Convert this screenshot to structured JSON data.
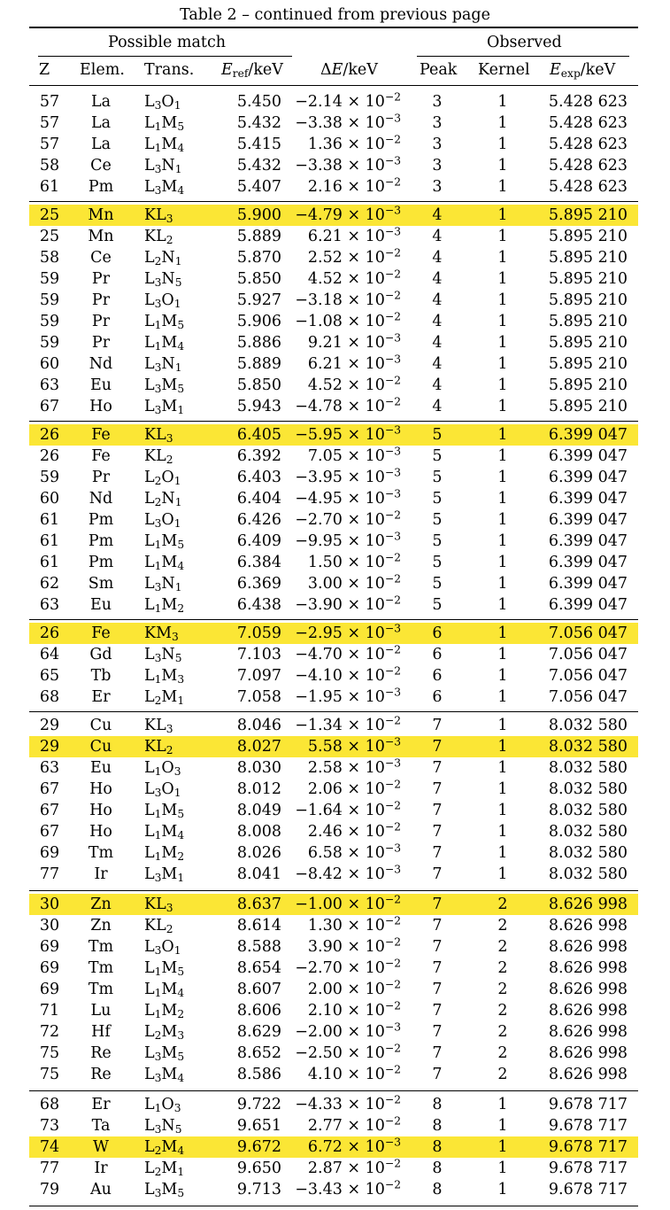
{
  "caption": "Table 2 – continued from previous page",
  "header": {
    "group_possible": "Possible match",
    "group_observed": "Observed",
    "col_z": "Z",
    "col_elem": "Elem.",
    "col_trans": "Trans.",
    "col_eref_main": "E",
    "col_eref_sub": "ref",
    "col_eref_unit": "/keV",
    "col_de_delta": "Δ",
    "col_de_main": "E",
    "col_de_unit": "/keV",
    "col_peak": "Peak",
    "col_kernel": "Kernel",
    "col_eexp_main": "E",
    "col_eexp_sub": "exp",
    "col_eexp_unit": "/keV"
  },
  "highlight_color": "#fbe635",
  "groups": [
    {
      "rows": [
        {
          "z": "57",
          "el": "La",
          "t": [
            "L",
            "3",
            "O",
            "1"
          ],
          "eref": "5.450",
          "dm": "−2.14 × 10",
          "de": "−2",
          "peak": "3",
          "kernel": "1",
          "eexp": "5.428 623",
          "hl": false
        },
        {
          "z": "57",
          "el": "La",
          "t": [
            "L",
            "1",
            "M",
            "5"
          ],
          "eref": "5.432",
          "dm": "−3.38 × 10",
          "de": "−3",
          "peak": "3",
          "kernel": "1",
          "eexp": "5.428 623",
          "hl": false
        },
        {
          "z": "57",
          "el": "La",
          "t": [
            "L",
            "1",
            "M",
            "4"
          ],
          "eref": "5.415",
          "dm": "1.36 × 10",
          "de": "−2",
          "peak": "3",
          "kernel": "1",
          "eexp": "5.428 623",
          "hl": false
        },
        {
          "z": "58",
          "el": "Ce",
          "t": [
            "L",
            "3",
            "N",
            "1"
          ],
          "eref": "5.432",
          "dm": "−3.38 × 10",
          "de": "−3",
          "peak": "3",
          "kernel": "1",
          "eexp": "5.428 623",
          "hl": false
        },
        {
          "z": "61",
          "el": "Pm",
          "t": [
            "L",
            "3",
            "M",
            "4"
          ],
          "eref": "5.407",
          "dm": "2.16 × 10",
          "de": "−2",
          "peak": "3",
          "kernel": "1",
          "eexp": "5.428 623",
          "hl": false
        }
      ]
    },
    {
      "rows": [
        {
          "z": "25",
          "el": "Mn",
          "t": [
            "K",
            "",
            "L",
            "3"
          ],
          "eref": "5.900",
          "dm": "−4.79 × 10",
          "de": "−3",
          "peak": "4",
          "kernel": "1",
          "eexp": "5.895 210",
          "hl": true
        },
        {
          "z": "25",
          "el": "Mn",
          "t": [
            "K",
            "",
            "L",
            "2"
          ],
          "eref": "5.889",
          "dm": "6.21 × 10",
          "de": "−3",
          "peak": "4",
          "kernel": "1",
          "eexp": "5.895 210",
          "hl": false
        },
        {
          "z": "58",
          "el": "Ce",
          "t": [
            "L",
            "2",
            "N",
            "1"
          ],
          "eref": "5.870",
          "dm": "2.52 × 10",
          "de": "−2",
          "peak": "4",
          "kernel": "1",
          "eexp": "5.895 210",
          "hl": false
        },
        {
          "z": "59",
          "el": "Pr",
          "t": [
            "L",
            "3",
            "N",
            "5"
          ],
          "eref": "5.850",
          "dm": "4.52 × 10",
          "de": "−2",
          "peak": "4",
          "kernel": "1",
          "eexp": "5.895 210",
          "hl": false
        },
        {
          "z": "59",
          "el": "Pr",
          "t": [
            "L",
            "3",
            "O",
            "1"
          ],
          "eref": "5.927",
          "dm": "−3.18 × 10",
          "de": "−2",
          "peak": "4",
          "kernel": "1",
          "eexp": "5.895 210",
          "hl": false
        },
        {
          "z": "59",
          "el": "Pr",
          "t": [
            "L",
            "1",
            "M",
            "5"
          ],
          "eref": "5.906",
          "dm": "−1.08 × 10",
          "de": "−2",
          "peak": "4",
          "kernel": "1",
          "eexp": "5.895 210",
          "hl": false
        },
        {
          "z": "59",
          "el": "Pr",
          "t": [
            "L",
            "1",
            "M",
            "4"
          ],
          "eref": "5.886",
          "dm": "9.21 × 10",
          "de": "−3",
          "peak": "4",
          "kernel": "1",
          "eexp": "5.895 210",
          "hl": false
        },
        {
          "z": "60",
          "el": "Nd",
          "t": [
            "L",
            "3",
            "N",
            "1"
          ],
          "eref": "5.889",
          "dm": "6.21 × 10",
          "de": "−3",
          "peak": "4",
          "kernel": "1",
          "eexp": "5.895 210",
          "hl": false
        },
        {
          "z": "63",
          "el": "Eu",
          "t": [
            "L",
            "3",
            "M",
            "5"
          ],
          "eref": "5.850",
          "dm": "4.52 × 10",
          "de": "−2",
          "peak": "4",
          "kernel": "1",
          "eexp": "5.895 210",
          "hl": false
        },
        {
          "z": "67",
          "el": "Ho",
          "t": [
            "L",
            "3",
            "M",
            "1"
          ],
          "eref": "5.943",
          "dm": "−4.78 × 10",
          "de": "−2",
          "peak": "4",
          "kernel": "1",
          "eexp": "5.895 210",
          "hl": false
        }
      ]
    },
    {
      "rows": [
        {
          "z": "26",
          "el": "Fe",
          "t": [
            "K",
            "",
            "L",
            "3"
          ],
          "eref": "6.405",
          "dm": "−5.95 × 10",
          "de": "−3",
          "peak": "5",
          "kernel": "1",
          "eexp": "6.399 047",
          "hl": true
        },
        {
          "z": "26",
          "el": "Fe",
          "t": [
            "K",
            "",
            "L",
            "2"
          ],
          "eref": "6.392",
          "dm": "7.05 × 10",
          "de": "−3",
          "peak": "5",
          "kernel": "1",
          "eexp": "6.399 047",
          "hl": false
        },
        {
          "z": "59",
          "el": "Pr",
          "t": [
            "L",
            "2",
            "O",
            "1"
          ],
          "eref": "6.403",
          "dm": "−3.95 × 10",
          "de": "−3",
          "peak": "5",
          "kernel": "1",
          "eexp": "6.399 047",
          "hl": false
        },
        {
          "z": "60",
          "el": "Nd",
          "t": [
            "L",
            "2",
            "N",
            "1"
          ],
          "eref": "6.404",
          "dm": "−4.95 × 10",
          "de": "−3",
          "peak": "5",
          "kernel": "1",
          "eexp": "6.399 047",
          "hl": false
        },
        {
          "z": "61",
          "el": "Pm",
          "t": [
            "L",
            "3",
            "O",
            "1"
          ],
          "eref": "6.426",
          "dm": "−2.70 × 10",
          "de": "−2",
          "peak": "5",
          "kernel": "1",
          "eexp": "6.399 047",
          "hl": false
        },
        {
          "z": "61",
          "el": "Pm",
          "t": [
            "L",
            "1",
            "M",
            "5"
          ],
          "eref": "6.409",
          "dm": "−9.95 × 10",
          "de": "−3",
          "peak": "5",
          "kernel": "1",
          "eexp": "6.399 047",
          "hl": false
        },
        {
          "z": "61",
          "el": "Pm",
          "t": [
            "L",
            "1",
            "M",
            "4"
          ],
          "eref": "6.384",
          "dm": "1.50 × 10",
          "de": "−2",
          "peak": "5",
          "kernel": "1",
          "eexp": "6.399 047",
          "hl": false
        },
        {
          "z": "62",
          "el": "Sm",
          "t": [
            "L",
            "3",
            "N",
            "1"
          ],
          "eref": "6.369",
          "dm": "3.00 × 10",
          "de": "−2",
          "peak": "5",
          "kernel": "1",
          "eexp": "6.399 047",
          "hl": false
        },
        {
          "z": "63",
          "el": "Eu",
          "t": [
            "L",
            "1",
            "M",
            "2"
          ],
          "eref": "6.438",
          "dm": "−3.90 × 10",
          "de": "−2",
          "peak": "5",
          "kernel": "1",
          "eexp": "6.399 047",
          "hl": false
        }
      ]
    },
    {
      "rows": [
        {
          "z": "26",
          "el": "Fe",
          "t": [
            "K",
            "",
            "M",
            "3"
          ],
          "eref": "7.059",
          "dm": "−2.95 × 10",
          "de": "−3",
          "peak": "6",
          "kernel": "1",
          "eexp": "7.056 047",
          "hl": true
        },
        {
          "z": "64",
          "el": "Gd",
          "t": [
            "L",
            "3",
            "N",
            "5"
          ],
          "eref": "7.103",
          "dm": "−4.70 × 10",
          "de": "−2",
          "peak": "6",
          "kernel": "1",
          "eexp": "7.056 047",
          "hl": false
        },
        {
          "z": "65",
          "el": "Tb",
          "t": [
            "L",
            "1",
            "M",
            "3"
          ],
          "eref": "7.097",
          "dm": "−4.10 × 10",
          "de": "−2",
          "peak": "6",
          "kernel": "1",
          "eexp": "7.056 047",
          "hl": false
        },
        {
          "z": "68",
          "el": "Er",
          "t": [
            "L",
            "2",
            "M",
            "1"
          ],
          "eref": "7.058",
          "dm": "−1.95 × 10",
          "de": "−3",
          "peak": "6",
          "kernel": "1",
          "eexp": "7.056 047",
          "hl": false
        }
      ]
    },
    {
      "rows": [
        {
          "z": "29",
          "el": "Cu",
          "t": [
            "K",
            "",
            "L",
            "3"
          ],
          "eref": "8.046",
          "dm": "−1.34 × 10",
          "de": "−2",
          "peak": "7",
          "kernel": "1",
          "eexp": "8.032 580",
          "hl": false
        },
        {
          "z": "29",
          "el": "Cu",
          "t": [
            "K",
            "",
            "L",
            "2"
          ],
          "eref": "8.027",
          "dm": "5.58 × 10",
          "de": "−3",
          "peak": "7",
          "kernel": "1",
          "eexp": "8.032 580",
          "hl": true
        },
        {
          "z": "63",
          "el": "Eu",
          "t": [
            "L",
            "1",
            "O",
            "3"
          ],
          "eref": "8.030",
          "dm": "2.58 × 10",
          "de": "−3",
          "peak": "7",
          "kernel": "1",
          "eexp": "8.032 580",
          "hl": false
        },
        {
          "z": "67",
          "el": "Ho",
          "t": [
            "L",
            "3",
            "O",
            "1"
          ],
          "eref": "8.012",
          "dm": "2.06 × 10",
          "de": "−2",
          "peak": "7",
          "kernel": "1",
          "eexp": "8.032 580",
          "hl": false
        },
        {
          "z": "67",
          "el": "Ho",
          "t": [
            "L",
            "1",
            "M",
            "5"
          ],
          "eref": "8.049",
          "dm": "−1.64 × 10",
          "de": "−2",
          "peak": "7",
          "kernel": "1",
          "eexp": "8.032 580",
          "hl": false
        },
        {
          "z": "67",
          "el": "Ho",
          "t": [
            "L",
            "1",
            "M",
            "4"
          ],
          "eref": "8.008",
          "dm": "2.46 × 10",
          "de": "−2",
          "peak": "7",
          "kernel": "1",
          "eexp": "8.032 580",
          "hl": false
        },
        {
          "z": "69",
          "el": "Tm",
          "t": [
            "L",
            "1",
            "M",
            "2"
          ],
          "eref": "8.026",
          "dm": "6.58 × 10",
          "de": "−3",
          "peak": "7",
          "kernel": "1",
          "eexp": "8.032 580",
          "hl": false
        },
        {
          "z": "77",
          "el": "Ir",
          "t": [
            "L",
            "3",
            "M",
            "1"
          ],
          "eref": "8.041",
          "dm": "−8.42 × 10",
          "de": "−3",
          "peak": "7",
          "kernel": "1",
          "eexp": "8.032 580",
          "hl": false
        }
      ]
    },
    {
      "rows": [
        {
          "z": "30",
          "el": "Zn",
          "t": [
            "K",
            "",
            "L",
            "3"
          ],
          "eref": "8.637",
          "dm": "−1.00 × 10",
          "de": "−2",
          "peak": "7",
          "kernel": "2",
          "eexp": "8.626 998",
          "hl": true
        },
        {
          "z": "30",
          "el": "Zn",
          "t": [
            "K",
            "",
            "L",
            "2"
          ],
          "eref": "8.614",
          "dm": "1.30 × 10",
          "de": "−2",
          "peak": "7",
          "kernel": "2",
          "eexp": "8.626 998",
          "hl": false
        },
        {
          "z": "69",
          "el": "Tm",
          "t": [
            "L",
            "3",
            "O",
            "1"
          ],
          "eref": "8.588",
          "dm": "3.90 × 10",
          "de": "−2",
          "peak": "7",
          "kernel": "2",
          "eexp": "8.626 998",
          "hl": false
        },
        {
          "z": "69",
          "el": "Tm",
          "t": [
            "L",
            "1",
            "M",
            "5"
          ],
          "eref": "8.654",
          "dm": "−2.70 × 10",
          "de": "−2",
          "peak": "7",
          "kernel": "2",
          "eexp": "8.626 998",
          "hl": false
        },
        {
          "z": "69",
          "el": "Tm",
          "t": [
            "L",
            "1",
            "M",
            "4"
          ],
          "eref": "8.607",
          "dm": "2.00 × 10",
          "de": "−2",
          "peak": "7",
          "kernel": "2",
          "eexp": "8.626 998",
          "hl": false
        },
        {
          "z": "71",
          "el": "Lu",
          "t": [
            "L",
            "1",
            "M",
            "2"
          ],
          "eref": "8.606",
          "dm": "2.10 × 10",
          "de": "−2",
          "peak": "7",
          "kernel": "2",
          "eexp": "8.626 998",
          "hl": false
        },
        {
          "z": "72",
          "el": "Hf",
          "t": [
            "L",
            "2",
            "M",
            "3"
          ],
          "eref": "8.629",
          "dm": "−2.00 × 10",
          "de": "−3",
          "peak": "7",
          "kernel": "2",
          "eexp": "8.626 998",
          "hl": false
        },
        {
          "z": "75",
          "el": "Re",
          "t": [
            "L",
            "3",
            "M",
            "5"
          ],
          "eref": "8.652",
          "dm": "−2.50 × 10",
          "de": "−2",
          "peak": "7",
          "kernel": "2",
          "eexp": "8.626 998",
          "hl": false
        },
        {
          "z": "75",
          "el": "Re",
          "t": [
            "L",
            "3",
            "M",
            "4"
          ],
          "eref": "8.586",
          "dm": "4.10 × 10",
          "de": "−2",
          "peak": "7",
          "kernel": "2",
          "eexp": "8.626 998",
          "hl": false
        }
      ]
    },
    {
      "rows": [
        {
          "z": "68",
          "el": "Er",
          "t": [
            "L",
            "1",
            "O",
            "3"
          ],
          "eref": "9.722",
          "dm": "−4.33 × 10",
          "de": "−2",
          "peak": "8",
          "kernel": "1",
          "eexp": "9.678 717",
          "hl": false
        },
        {
          "z": "73",
          "el": "Ta",
          "t": [
            "L",
            "3",
            "N",
            "5"
          ],
          "eref": "9.651",
          "dm": "2.77 × 10",
          "de": "−2",
          "peak": "8",
          "kernel": "1",
          "eexp": "9.678 717",
          "hl": false
        },
        {
          "z": "74",
          "el": "W",
          "t": [
            "L",
            "2",
            "M",
            "4"
          ],
          "eref": "9.672",
          "dm": "6.72 × 10",
          "de": "−3",
          "peak": "8",
          "kernel": "1",
          "eexp": "9.678 717",
          "hl": true
        },
        {
          "z": "77",
          "el": "Ir",
          "t": [
            "L",
            "2",
            "M",
            "1"
          ],
          "eref": "9.650",
          "dm": "2.87 × 10",
          "de": "−2",
          "peak": "8",
          "kernel": "1",
          "eexp": "9.678 717",
          "hl": false
        },
        {
          "z": "79",
          "el": "Au",
          "t": [
            "L",
            "3",
            "M",
            "5"
          ],
          "eref": "9.713",
          "dm": "−3.43 × 10",
          "de": "−2",
          "peak": "8",
          "kernel": "1",
          "eexp": "9.678 717",
          "hl": false
        }
      ]
    }
  ]
}
